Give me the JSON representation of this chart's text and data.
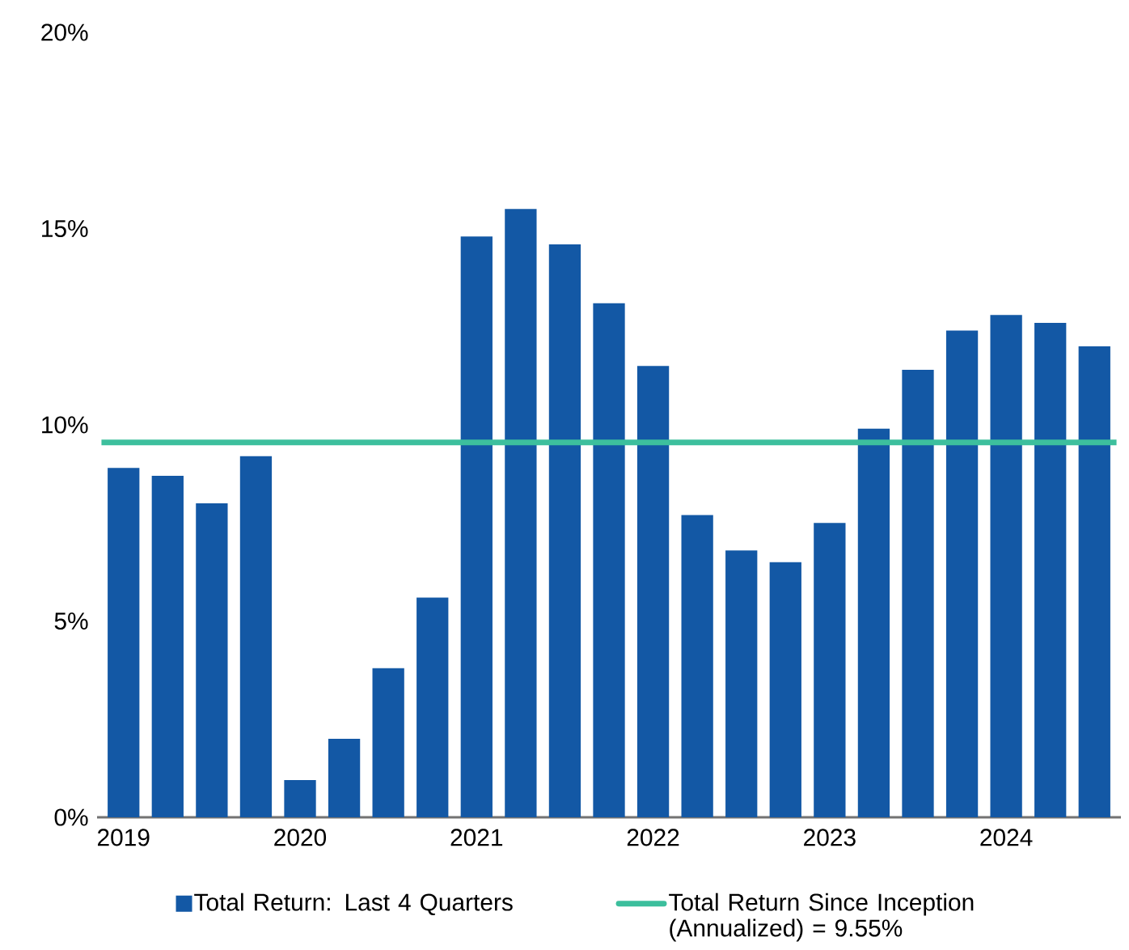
{
  "chart_data": {
    "type": "bar",
    "categories": [
      "2019",
      null,
      null,
      null,
      "2020",
      null,
      null,
      null,
      "2021",
      null,
      null,
      null,
      "2022",
      null,
      null,
      null,
      "2023",
      null,
      null,
      null,
      "2024",
      null,
      null
    ],
    "series": [
      {
        "name": "Total Return: Last 4 Quarters",
        "color": "#1358a5",
        "values": [
          8.9,
          8.7,
          8.0,
          9.2,
          0.95,
          2.0,
          3.8,
          5.6,
          14.8,
          15.5,
          14.6,
          13.1,
          11.5,
          7.7,
          6.8,
          6.5,
          7.5,
          9.9,
          11.4,
          12.4,
          12.8,
          12.6,
          12.0
        ]
      }
    ],
    "ylim": [
      0,
      20
    ],
    "yticks": [
      {
        "value": 0,
        "label": "0%"
      },
      {
        "value": 5,
        "label": "5%"
      },
      {
        "value": 10,
        "label": "10%"
      },
      {
        "value": 15,
        "label": "15%"
      },
      {
        "value": 20,
        "label": "20%"
      }
    ],
    "ref_lines": [
      {
        "axis": "y",
        "value": 9.55,
        "label": "Total Return Since Inception (Annualized) = 9.55%",
        "color": "#3dbf9d"
      }
    ],
    "grid": false,
    "legend": "bottom"
  }
}
